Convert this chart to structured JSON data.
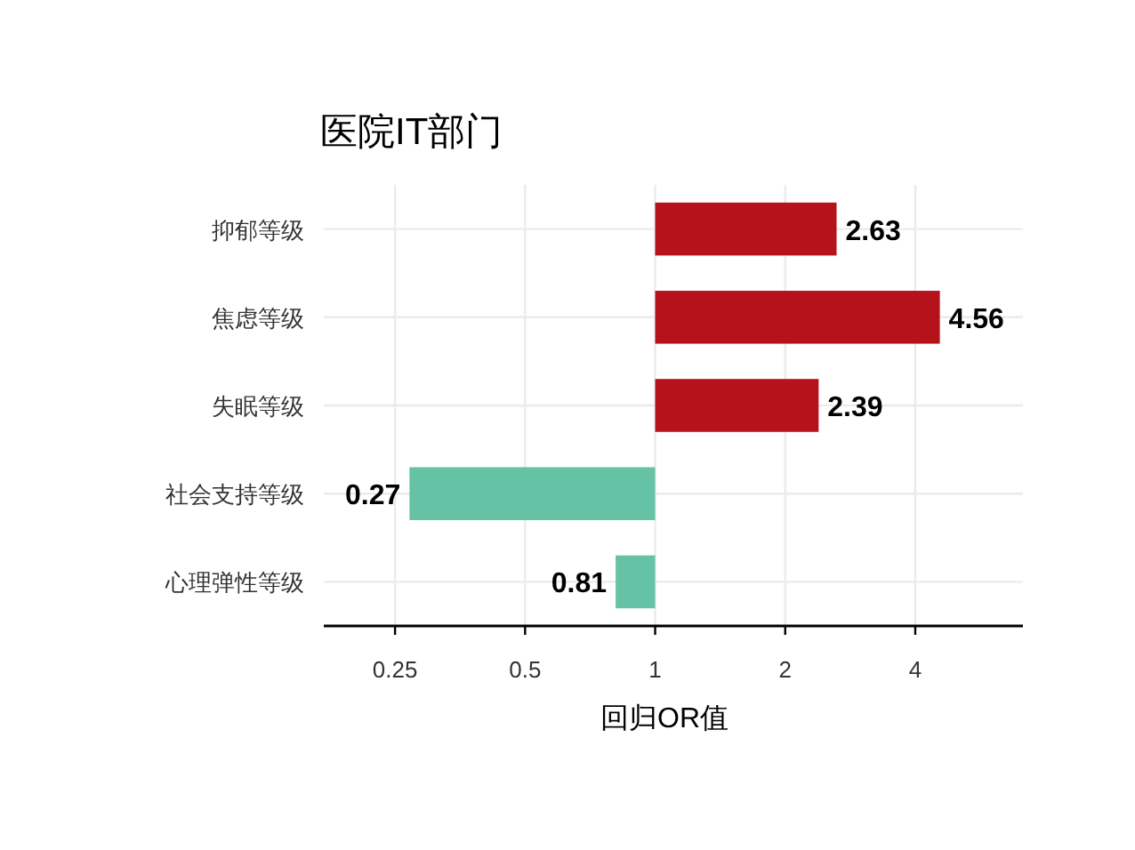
{
  "chart_data": {
    "type": "bar",
    "orientation": "horizontal",
    "title": "医院IT部门",
    "xlabel": "回归OR值",
    "categories": [
      "抑郁等级",
      "焦虑等级",
      "失眠等级",
      "社会支持等级",
      "心理弹性等级"
    ],
    "base": [
      1,
      1,
      1,
      1,
      1
    ],
    "values": [
      1.63,
      3.56,
      1.39,
      -0.73,
      -0.19
    ],
    "value_labels": [
      "2.63",
      "4.56",
      "2.39",
      "0.27",
      "0.81"
    ],
    "colors": [
      "#b5121b",
      "#b5121b",
      "#b5121b",
      "#66c2a5",
      "#66c2a5"
    ],
    "log": "x",
    "xlim": [
      0.171,
      7.1
    ],
    "xticks": [
      0.25,
      0.5,
      1,
      2,
      4
    ],
    "grid": true
  }
}
